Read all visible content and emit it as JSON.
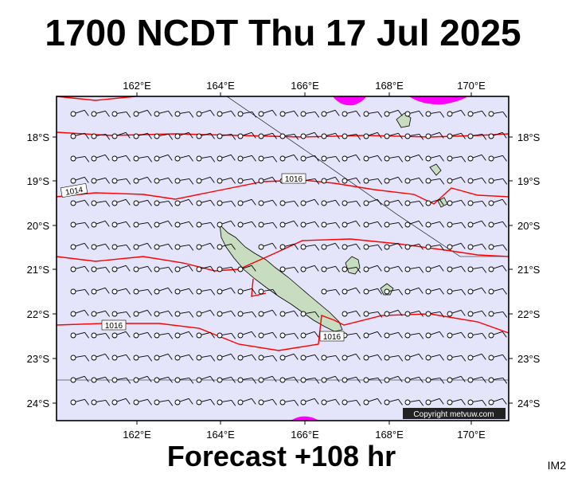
{
  "header": {
    "title": "1700 NCDT Thu 17 Jul 2025"
  },
  "footer": {
    "forecast": "Forecast +108 hr",
    "tag": "IM2"
  },
  "map": {
    "copyright": "Copyright metvuw.com",
    "lon_labels": [
      "162°E",
      "164°E",
      "166°E",
      "168°E",
      "170°E"
    ],
    "lat_labels": [
      "18°S",
      "19°S",
      "20°S",
      "21°S",
      "22°S",
      "23°S",
      "24°S"
    ],
    "isobar_labels": [
      "1014",
      "1016",
      "1016",
      "1016"
    ],
    "colors": {
      "background": "#e4e4fa",
      "isobar": "#ff0000",
      "rain": "#ff00ff",
      "land": "#c8dcc0",
      "wind": "#000000"
    },
    "wind": "light easterly winds (single barbs) across the region"
  }
}
